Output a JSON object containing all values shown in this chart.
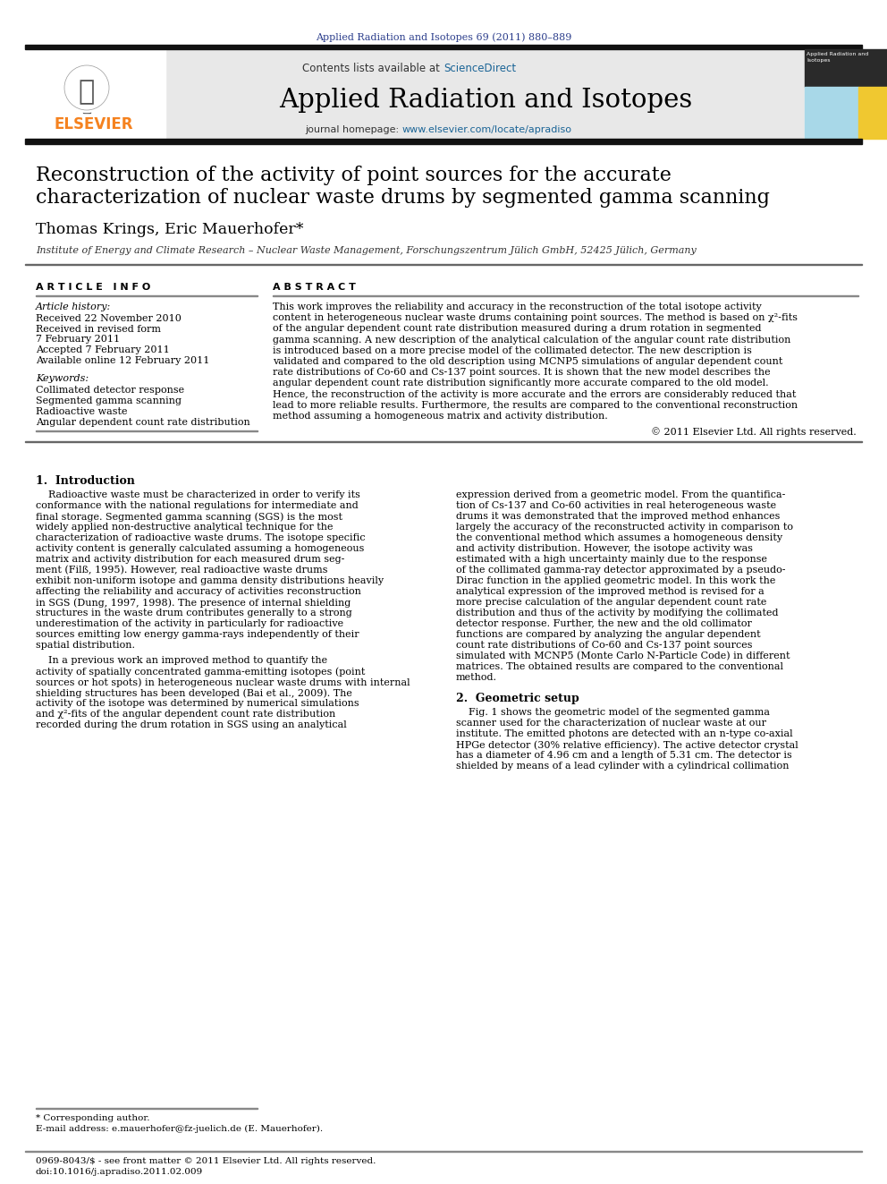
{
  "journal_ref": "Applied Radiation and Isotopes 69 (2011) 880–889",
  "contents_text": "Contents lists available at ScienceDirect",
  "journal_name": "Applied Radiation and Isotopes",
  "journal_homepage": "journal homepage: www.elsevier.com/locate/apradiso",
  "paper_title_line1": "Reconstruction of the activity of point sources for the accurate",
  "paper_title_line2": "characterization of nuclear waste drums by segmented gamma scanning",
  "authors": "Thomas Krings, Eric Mauerhofer*",
  "affiliation": "Institute of Energy and Climate Research – Nuclear Waste Management, Forschungszentrum Jülich GmbH, 52425 Jülich, Germany",
  "article_info_label": "ARTICLE INFO",
  "abstract_label": "ABSTRACT",
  "article_history_label": "Article history:",
  "received1": "Received 22 November 2010",
  "received2": "Received in revised form",
  "received2b": "7 February 2011",
  "accepted": "Accepted 7 February 2011",
  "available": "Available online 12 February 2011",
  "keywords_label": "Keywords:",
  "kw1": "Collimated detector response",
  "kw2": "Segmented gamma scanning",
  "kw3": "Radioactive waste",
  "kw4": "Angular dependent count rate distribution",
  "copyright": "© 2011 Elsevier Ltd. All rights reserved.",
  "section1_title": "1.  Introduction",
  "section2_title": "2.  Geometric setup",
  "footnote_star": "* Corresponding author.",
  "footnote_email": "E-mail address: e.mauerhofer@fz-juelich.de (E. Mauerhofer).",
  "footer_issn": "0969-8043/$ - see front matter © 2011 Elsevier Ltd. All rights reserved.",
  "footer_doi": "doi:10.1016/j.apradiso.2011.02.009",
  "bg_header": "#e8e8e8",
  "color_sciencedirect": "#1a6496",
  "color_elsevier_orange": "#f5821f",
  "color_journal_ref": "#2c3e8c",
  "color_black_bar": "#111111",
  "abstract_lines": [
    "This work improves the reliability and accuracy in the reconstruction of the total isotope activity",
    "content in heterogeneous nuclear waste drums containing point sources. The method is based on χ²-fits",
    "of the angular dependent count rate distribution measured during a drum rotation in segmented",
    "gamma scanning. A new description of the analytical calculation of the angular count rate distribution",
    "is introduced based on a more precise model of the collimated detector. The new description is",
    "validated and compared to the old description using MCNP5 simulations of angular dependent count",
    "rate distributions of Co-60 and Cs-137 point sources. It is shown that the new model describes the",
    "angular dependent count rate distribution significantly more accurate compared to the old model.",
    "Hence, the reconstruction of the activity is more accurate and the errors are considerably reduced that",
    "lead to more reliable results. Furthermore, the results are compared to the conventional reconstruction",
    "method assuming a homogeneous matrix and activity distribution."
  ],
  "intro_p1_lines": [
    "    Radioactive waste must be characterized in order to verify its",
    "conformance with the national regulations for intermediate and",
    "final storage. Segmented gamma scanning (SGS) is the most",
    "widely applied non-destructive analytical technique for the",
    "characterization of radioactive waste drums. The isotope specific",
    "activity content is generally calculated assuming a homogeneous",
    "matrix and activity distribution for each measured drum seg-",
    "ment (Filß, 1995). However, real radioactive waste drums",
    "exhibit non-uniform isotope and gamma density distributions heavily",
    "affecting the reliability and accuracy of activities reconstruction",
    "in SGS (Dung, 1997, 1998). The presence of internal shielding",
    "structures in the waste drum contributes generally to a strong",
    "underestimation of the activity in particularly for radioactive",
    "sources emitting low energy gamma-rays independently of their",
    "spatial distribution."
  ],
  "intro_p2_lines": [
    "    In a previous work an improved method to quantify the",
    "activity of spatially concentrated gamma-emitting isotopes (point",
    "sources or hot spots) in heterogeneous nuclear waste drums with internal",
    "shielding structures has been developed (Bai et al., 2009). The",
    "activity of the isotope was determined by numerical simulations",
    "and χ²-fits of the angular dependent count rate distribution",
    "recorded during the drum rotation in SGS using an analytical"
  ],
  "intro_rc_lines": [
    "expression derived from a geometric model. From the quantifica-",
    "tion of Cs-137 and Co-60 activities in real heterogeneous waste",
    "drums it was demonstrated that the improved method enhances",
    "largely the accuracy of the reconstructed activity in comparison to",
    "the conventional method which assumes a homogeneous density",
    "and activity distribution. However, the isotope activity was",
    "estimated with a high uncertainty mainly due to the response",
    "of the collimated gamma-ray detector approximated by a pseudo-",
    "Dirac function in the applied geometric model. In this work the",
    "analytical expression of the improved method is revised for a",
    "more precise calculation of the angular dependent count rate",
    "distribution and thus of the activity by modifying the collimated",
    "detector response. Further, the new and the old collimator",
    "functions are compared by analyzing the angular dependent",
    "count rate distributions of Co-60 and Cs-137 point sources",
    "simulated with MCNP5 (Monte Carlo N-Particle Code) in different",
    "matrices. The obtained results are compared to the conventional",
    "method."
  ],
  "sec2_lines": [
    "    Fig. 1 shows the geometric model of the segmented gamma",
    "scanner used for the characterization of nuclear waste at our",
    "institute. The emitted photons are detected with an n-type co-axial",
    "HPGe detector (30% relative efficiency). The active detector crystal",
    "has a diameter of 4.96 cm and a length of 5.31 cm. The detector is",
    "shielded by means of a lead cylinder with a cylindrical collimation"
  ]
}
